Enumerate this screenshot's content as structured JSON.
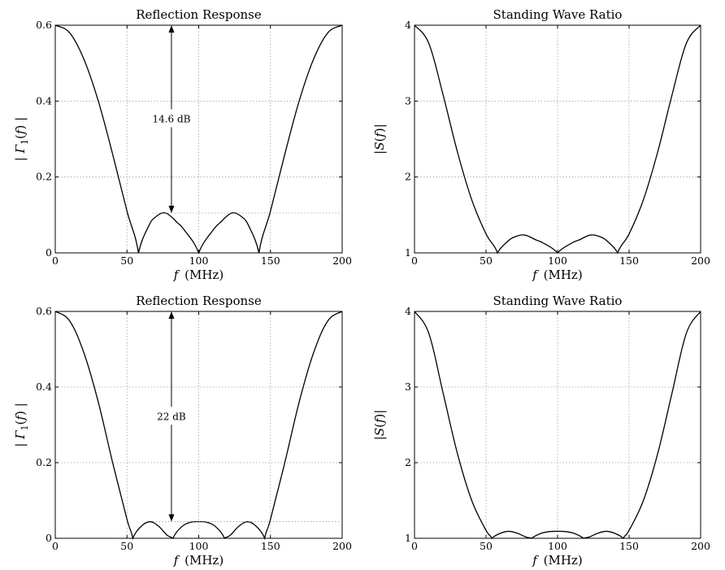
{
  "chart_data": [
    {
      "type": "line",
      "title": "Reflection Response",
      "xlabel": "f (MHz)",
      "ylabel": "|Γ1(f)|",
      "xlim": [
        0,
        200
      ],
      "ylim": [
        0,
        0.6
      ],
      "xticks": [
        "0",
        "50",
        "100",
        "150",
        "200"
      ],
      "yticks": [
        "0",
        "0.2",
        "0.4",
        "0.6"
      ],
      "grid": true,
      "series": [
        {
          "x": [
            0,
            10,
            20,
            30,
            40,
            50,
            58,
            65,
            70,
            77,
            85,
            90,
            100,
            110,
            115,
            123,
            130,
            135,
            142,
            150,
            160,
            170,
            180,
            190,
            200
          ],
          "y": [
            0.6,
            0.58,
            0.51,
            0.4,
            0.26,
            0.11,
            0.0,
            0.07,
            0.095,
            0.105,
            0.08,
            0.06,
            0.0,
            0.06,
            0.08,
            0.105,
            0.095,
            0.07,
            0.0,
            0.11,
            0.26,
            0.4,
            0.51,
            0.58,
            0.6
          ]
        }
      ],
      "annotation": {
        "text": "14.6 dB",
        "x": 81,
        "from": 0.105,
        "to": 0.6
      }
    },
    {
      "type": "line",
      "title": "Standing Wave Ratio",
      "xlabel": "f (MHz)",
      "ylabel": "|S(f)|",
      "xlim": [
        0,
        200
      ],
      "ylim": [
        1,
        4
      ],
      "xticks": [
        "0",
        "50",
        "100",
        "150",
        "200"
      ],
      "yticks": [
        "1",
        "2",
        "3",
        "4"
      ],
      "grid": true,
      "series": [
        {
          "x": [
            0,
            10,
            20,
            30,
            40,
            50,
            58,
            65,
            70,
            77,
            85,
            90,
            100,
            110,
            115,
            123,
            130,
            135,
            142,
            150,
            160,
            170,
            180,
            190,
            200
          ],
          "y": [
            4.0,
            3.76,
            3.08,
            2.33,
            1.7,
            1.25,
            1.0,
            1.15,
            1.21,
            1.235,
            1.17,
            1.13,
            1.0,
            1.13,
            1.17,
            1.235,
            1.21,
            1.15,
            1.0,
            1.25,
            1.7,
            2.33,
            3.08,
            3.76,
            4.0
          ]
        }
      ]
    },
    {
      "type": "line",
      "title": "Reflection Response",
      "xlabel": "f (MHz)",
      "ylabel": "|Γ1(f)|",
      "xlim": [
        0,
        200
      ],
      "ylim": [
        0,
        0.6
      ],
      "xticks": [
        "0",
        "50",
        "100",
        "150",
        "200"
      ],
      "yticks": [
        "0",
        "0.2",
        "0.4",
        "0.6"
      ],
      "grid": true,
      "series": [
        {
          "x": [
            0,
            10,
            20,
            30,
            40,
            50,
            54,
            60,
            66,
            72,
            78,
            82,
            88,
            94,
            100,
            106,
            112,
            118,
            122,
            128,
            134,
            140,
            146,
            150,
            160,
            170,
            180,
            190,
            200
          ],
          "y": [
            0.6,
            0.575,
            0.49,
            0.36,
            0.2,
            0.05,
            0.0,
            0.032,
            0.044,
            0.032,
            0.008,
            0.0,
            0.03,
            0.042,
            0.044,
            0.042,
            0.03,
            0.0,
            0.008,
            0.032,
            0.044,
            0.032,
            0.0,
            0.05,
            0.2,
            0.36,
            0.49,
            0.575,
            0.6
          ]
        }
      ],
      "annotation": {
        "text": "22 dB",
        "x": 81,
        "from": 0.044,
        "to": 0.6
      }
    },
    {
      "type": "line",
      "title": "Standing Wave Ratio",
      "xlabel": "f (MHz)",
      "ylabel": "|S(f)|",
      "xlim": [
        0,
        200
      ],
      "ylim": [
        1,
        4
      ],
      "xticks": [
        "0",
        "50",
        "100",
        "150",
        "200"
      ],
      "yticks": [
        "1",
        "2",
        "3",
        "4"
      ],
      "grid": true,
      "series": [
        {
          "x": [
            0,
            10,
            20,
            30,
            40,
            50,
            54,
            60,
            66,
            72,
            78,
            82,
            88,
            94,
            100,
            106,
            112,
            118,
            122,
            128,
            134,
            140,
            146,
            150,
            160,
            170,
            180,
            190,
            200
          ],
          "y": [
            4.0,
            3.71,
            2.92,
            2.12,
            1.5,
            1.105,
            1.0,
            1.066,
            1.092,
            1.066,
            1.016,
            1.0,
            1.062,
            1.088,
            1.092,
            1.088,
            1.062,
            1.0,
            1.016,
            1.066,
            1.092,
            1.066,
            1.0,
            1.105,
            1.5,
            2.12,
            2.92,
            3.71,
            4.0
          ]
        }
      ]
    }
  ]
}
